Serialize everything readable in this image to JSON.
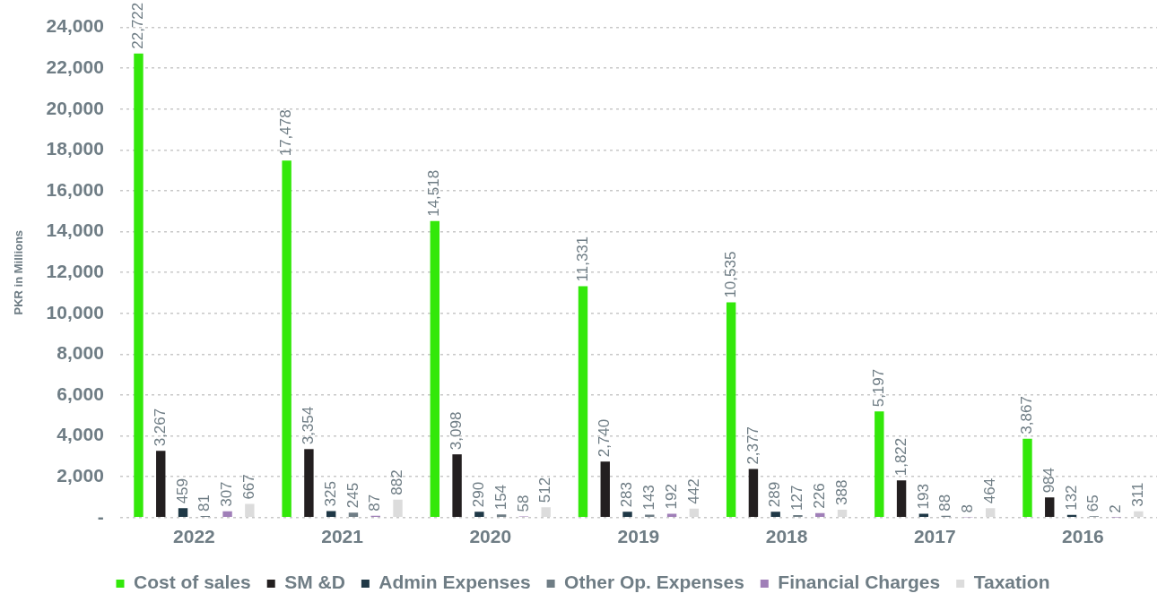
{
  "chart_data": {
    "type": "bar",
    "ylabel": "PKR in Millions",
    "categories": [
      "2022",
      "2021",
      "2020",
      "2019",
      "2018",
      "2017",
      "2016"
    ],
    "series": [
      {
        "name": "Cost of sales",
        "color": "#33e80a",
        "values": [
          22722,
          17478,
          14518,
          11331,
          10535,
          5197,
          3867
        ],
        "value_labels": [
          "22,722",
          "17,478",
          "14,518",
          "11,331",
          "10,535",
          "5,197",
          "3,867"
        ]
      },
      {
        "name": "SM &D",
        "color": "#231f20",
        "values": [
          3267,
          3354,
          3098,
          2740,
          2377,
          1822,
          984
        ],
        "value_labels": [
          "3,267",
          "3,354",
          "3,098",
          "2,740",
          "2,377",
          "1,822",
          "984"
        ]
      },
      {
        "name": "Admin Expenses",
        "color": "#1f3846",
        "values": [
          459,
          325,
          290,
          283,
          289,
          193,
          132
        ],
        "value_labels": [
          "459",
          "325",
          "290",
          "283",
          "289",
          "193",
          "132"
        ]
      },
      {
        "name": "Other Op. Expenses",
        "color": "#6f7d85",
        "values": [
          81,
          245,
          154,
          143,
          127,
          88,
          65
        ],
        "value_labels": [
          "81",
          "245",
          "154",
          "143",
          "127",
          "88",
          "65"
        ]
      },
      {
        "name": "Financial Charges",
        "color": "#a07fb8",
        "values": [
          307,
          87,
          58,
          192,
          226,
          8,
          2
        ],
        "value_labels": [
          "307",
          "87",
          "58",
          "192",
          "226",
          "8",
          "2"
        ]
      },
      {
        "name": "Taxation",
        "color": "#dcdcdc",
        "values": [
          667,
          882,
          512,
          442,
          388,
          464,
          311
        ],
        "value_labels": [
          "667",
          "882",
          "512",
          "442",
          "388",
          "464",
          "311"
        ]
      }
    ],
    "ylim": [
      0,
      24000
    ],
    "yticks": [
      {
        "value": 0,
        "label": "-"
      },
      {
        "value": 2000,
        "label": "2,000"
      },
      {
        "value": 4000,
        "label": "4,000"
      },
      {
        "value": 6000,
        "label": "6,000"
      },
      {
        "value": 8000,
        "label": "8,000"
      },
      {
        "value": 10000,
        "label": "10,000"
      },
      {
        "value": 12000,
        "label": "12,000"
      },
      {
        "value": 14000,
        "label": "14,000"
      },
      {
        "value": 16000,
        "label": "16,000"
      },
      {
        "value": 18000,
        "label": "18,000"
      },
      {
        "value": 20000,
        "label": "20,000"
      },
      {
        "value": 22000,
        "label": "22,000"
      },
      {
        "value": 24000,
        "label": "24,000"
      }
    ],
    "grid": "y",
    "legend": "bottom"
  }
}
